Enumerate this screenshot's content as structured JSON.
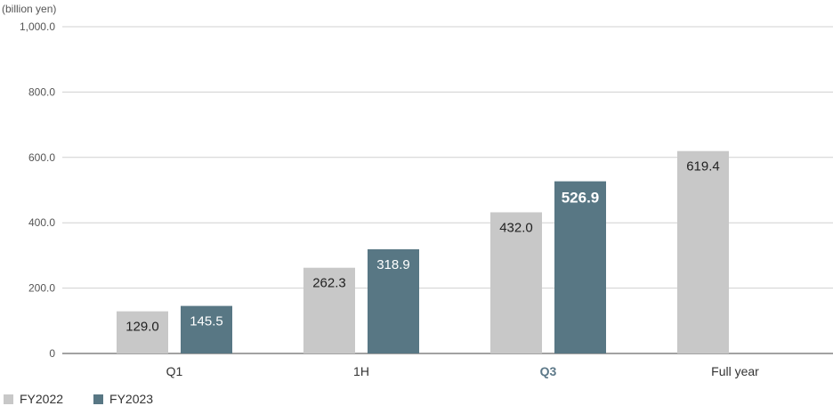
{
  "chart_data": {
    "type": "bar",
    "unit_label": "(billion yen)",
    "categories": [
      "Q1",
      "1H",
      "Q3",
      "Full year"
    ],
    "highlight_category": "Q3",
    "y_ticks": [
      "0",
      "200.0",
      "400.0",
      "600.0",
      "800.0",
      "1,000.0"
    ],
    "ylim": [
      0,
      1000
    ],
    "grid": true,
    "legend_position": "bottom-left",
    "series": [
      {
        "name": "FY2022",
        "color": "#c8c8c8",
        "values": [
          129.0,
          262.3,
          432.0,
          619.4
        ],
        "labels": [
          "129.0",
          "262.3",
          "432.0",
          "619.4"
        ]
      },
      {
        "name": "FY2023",
        "color": "#587784",
        "values": [
          145.5,
          318.9,
          526.9,
          null
        ],
        "labels": [
          "145.5",
          "318.9",
          "526.9",
          ""
        ]
      }
    ]
  }
}
